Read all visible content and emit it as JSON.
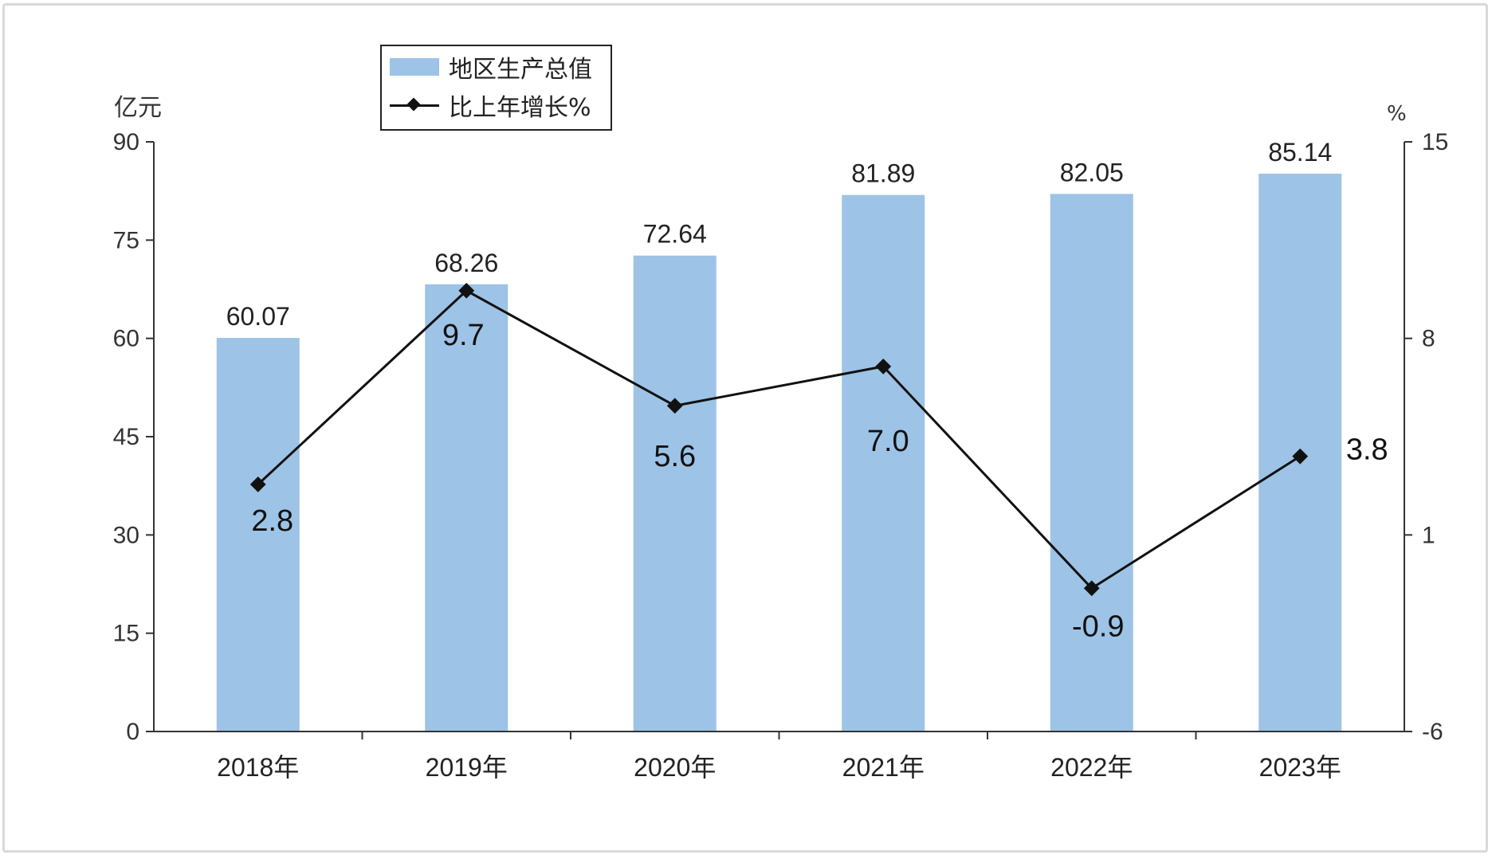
{
  "chart_data": {
    "type": "bar+line",
    "categories": [
      "2018年",
      "2019年",
      "2020年",
      "2021年",
      "2022年",
      "2023年"
    ],
    "series": [
      {
        "name": "地区生产总值",
        "type": "bar",
        "axis": "left",
        "values": [
          60.07,
          68.26,
          72.64,
          81.89,
          82.05,
          85.14
        ],
        "color": "#9dc3e6"
      },
      {
        "name": "比上年增长%",
        "type": "line",
        "axis": "right",
        "values": [
          2.8,
          9.7,
          5.6,
          7.0,
          -0.9,
          3.8
        ],
        "color": "#111111"
      }
    ],
    "y_left": {
      "unit": "亿元",
      "ylim": [
        0,
        90
      ],
      "ticks": [
        0,
        15,
        30,
        45,
        60,
        75,
        90
      ]
    },
    "y_right": {
      "unit": "%",
      "ylim": [
        -6,
        15
      ],
      "ticks": [
        -6,
        1,
        8,
        15
      ]
    },
    "legend": {
      "position": "top-left"
    },
    "grid": false
  }
}
